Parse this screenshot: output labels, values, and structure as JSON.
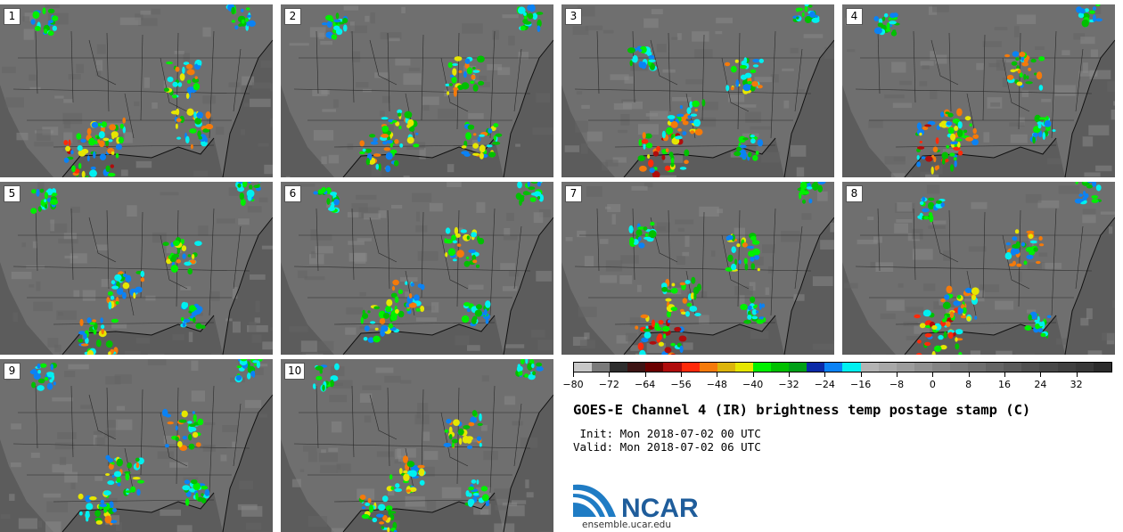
{
  "colors": {
    "background": "#5c5c5c",
    "land": "#6f6f6f",
    "border": "#111111"
  },
  "panels": [
    {
      "label": "1"
    },
    {
      "label": "2"
    },
    {
      "label": "3"
    },
    {
      "label": "4"
    },
    {
      "label": "5"
    },
    {
      "label": "6"
    },
    {
      "label": "7"
    },
    {
      "label": "8"
    },
    {
      "label": "9"
    },
    {
      "label": "10"
    }
  ],
  "chart_data": {
    "type": "heatmap",
    "title": "GOES-E Channel 4 (IR) brightness temp postage stamp (C)",
    "init": " Init: Mon 2018-07-02 00 UTC",
    "valid": "Valid: Mon 2018-07-02 06 UTC",
    "colorbar": {
      "min": -80,
      "max": 40,
      "step": 4,
      "tick_labels": [
        "−80",
        "−72",
        "−64",
        "−56",
        "−48",
        "−40",
        "−32",
        "−24",
        "−16",
        "−8",
        "0",
        "8",
        "16",
        "24",
        "32"
      ],
      "tick_values": [
        -80,
        -72,
        -64,
        -56,
        -48,
        -40,
        -32,
        -24,
        -16,
        -8,
        0,
        8,
        16,
        24,
        32
      ],
      "colors": [
        "#c8c8c8",
        "#7a7a7a",
        "#2e2e2e",
        "#3d1414",
        "#6b0000",
        "#b00c0c",
        "#ff2a0a",
        "#f57a0a",
        "#dcb40a",
        "#e6e600",
        "#00f000",
        "#00c000",
        "#00a018",
        "#0a2aa8",
        "#0a82f5",
        "#00f0f0",
        "#b4b4b4",
        "#a8a8a8",
        "#9c9c9c",
        "#909090",
        "#848484",
        "#787878",
        "#6e6e6e",
        "#646464",
        "#5a5a5a",
        "#505050",
        "#484848",
        "#404040",
        "#383838",
        "#2c2c2c"
      ]
    }
  },
  "logo": {
    "text": "NCAR",
    "url": "ensemble.ucar.edu",
    "color": "#1f5d9b"
  }
}
